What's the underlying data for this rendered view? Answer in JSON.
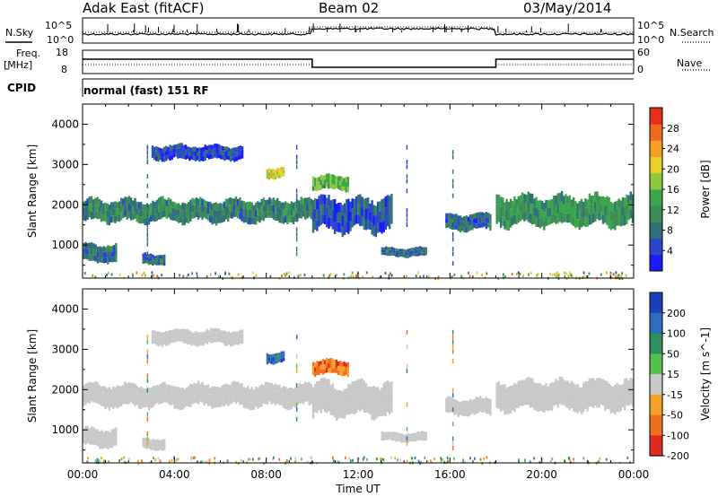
{
  "header": {
    "station": "Adak East (fitACF)",
    "beam": "Beam 02",
    "date": "03/May/2014"
  },
  "panels": {
    "noise": {
      "left_label": "N.Sky",
      "right_label": "N.Search",
      "ticks_left": [
        "10^5",
        "10^0"
      ],
      "ticks_right": [
        "10^5",
        "10^0"
      ]
    },
    "freq": {
      "left_label": "Freq.",
      "left_unit": "[MHz]",
      "ticks_left": [
        "18",
        "8"
      ],
      "right_label": "Nave",
      "ticks_right": [
        "60",
        "0"
      ]
    },
    "cpid": {
      "label": "CPID",
      "program": "normal (fast) 151 RF"
    }
  },
  "colors": {
    "no_data": "#ffffff",
    "ground_scatter": "#c8c8c8",
    "axis": "#000000"
  },
  "chart_data": [
    {
      "type": "heatmap",
      "name": "power",
      "ylabel": "Slant Range [km]",
      "ylim": [
        180,
        4500
      ],
      "yticks": [
        1000,
        2000,
        3000,
        4000
      ],
      "xlim": [
        0,
        24
      ],
      "colorbar": {
        "label": "Power [dB]",
        "range": [
          0,
          32
        ],
        "ticks": [
          4,
          8,
          12,
          16,
          20,
          24,
          28
        ],
        "colors": [
          "#1a1aff",
          "#2a47c9",
          "#30707a",
          "#3d8a56",
          "#3aa64b",
          "#8cc840",
          "#e8d028",
          "#f5a023",
          "#ef6a1e",
          "#e62e1a"
        ]
      },
      "regions": [
        {
          "x": [
            0.0,
            10.0
          ],
          "y": [
            1550,
            2150
          ],
          "value": 10
        },
        {
          "x": [
            0.0,
            1.5
          ],
          "y": [
            550,
            1050
          ],
          "value": 8
        },
        {
          "x": [
            2.6,
            3.6
          ],
          "y": [
            500,
            800
          ],
          "value": 8
        },
        {
          "x": [
            3.0,
            7.0
          ],
          "y": [
            3100,
            3500
          ],
          "value": 5
        },
        {
          "x": [
            8.0,
            8.8
          ],
          "y": [
            2650,
            2950
          ],
          "value": 20
        },
        {
          "x": [
            10.0,
            11.6
          ],
          "y": [
            2350,
            2750
          ],
          "value": 15
        },
        {
          "x": [
            10.0,
            13.5
          ],
          "y": [
            1300,
            2200
          ],
          "value": 6
        },
        {
          "x": [
            13.0,
            15.0
          ],
          "y": [
            700,
            950
          ],
          "value": 8
        },
        {
          "x": [
            15.8,
            17.8
          ],
          "y": [
            1350,
            1800
          ],
          "value": 7
        },
        {
          "x": [
            18.0,
            24.0
          ],
          "y": [
            1450,
            2250
          ],
          "value": 12
        }
      ]
    },
    {
      "type": "heatmap",
      "name": "velocity",
      "ylabel": "Slant Range [km]",
      "ylim": [
        180,
        4500
      ],
      "yticks": [
        1000,
        2000,
        3000,
        4000
      ],
      "xlim": [
        0,
        24
      ],
      "xticks": [
        "00:00",
        "04:00",
        "08:00",
        "12:00",
        "16:00",
        "20:00",
        "00:00"
      ],
      "xlabel": "Time UT",
      "colorbar": {
        "label": "Velocity [m s^-1]",
        "range": [
          -250,
          250
        ],
        "ticks": [
          200,
          100,
          50,
          15,
          -15,
          -50,
          -100,
          -200
        ],
        "colors": [
          "#1c3fbf",
          "#2e6cc0",
          "#2f8f5e",
          "#56c04f",
          "#c8c8c8",
          "#f2a325",
          "#f07020",
          "#e02c1e"
        ]
      },
      "regions": [
        {
          "x": [
            0.0,
            10.0
          ],
          "y": [
            1550,
            2150
          ],
          "value": 0,
          "ground_scatter": true
        },
        {
          "x": [
            0.0,
            1.5
          ],
          "y": [
            550,
            1050
          ],
          "value": 0,
          "ground_scatter": true
        },
        {
          "x": [
            2.6,
            3.6
          ],
          "y": [
            500,
            800
          ],
          "value": 0,
          "ground_scatter": true
        },
        {
          "x": [
            3.0,
            7.0
          ],
          "y": [
            3100,
            3500
          ],
          "value": 0,
          "ground_scatter": true
        },
        {
          "x": [
            8.0,
            8.8
          ],
          "y": [
            2650,
            2950
          ],
          "value": 150
        },
        {
          "x": [
            10.0,
            11.6
          ],
          "y": [
            2350,
            2750
          ],
          "value": -150
        },
        {
          "x": [
            10.0,
            13.5
          ],
          "y": [
            1300,
            2200
          ],
          "value": 0,
          "ground_scatter": true
        },
        {
          "x": [
            13.0,
            15.0
          ],
          "y": [
            700,
            950
          ],
          "value": 0,
          "ground_scatter": true
        },
        {
          "x": [
            15.8,
            17.8
          ],
          "y": [
            1350,
            1800
          ],
          "value": 0,
          "ground_scatter": true
        },
        {
          "x": [
            18.0,
            24.0
          ],
          "y": [
            1450,
            2250
          ],
          "value": 0,
          "ground_scatter": true
        }
      ]
    }
  ]
}
